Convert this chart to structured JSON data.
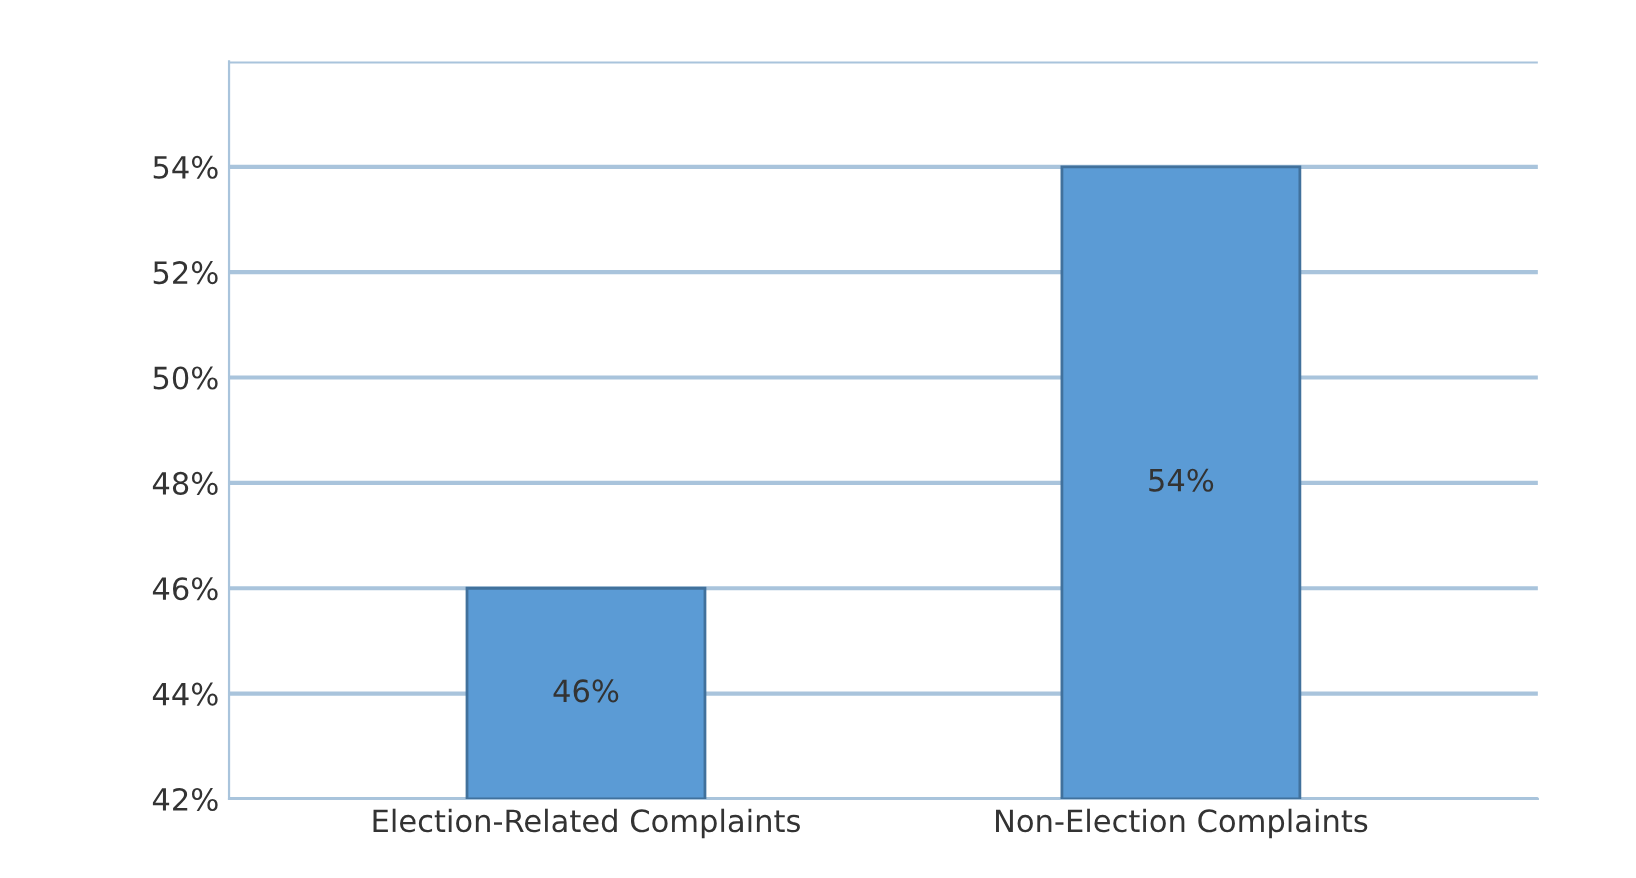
{
  "chart_data": {
    "type": "bar",
    "categories": [
      "Election-Related Complaints",
      "Non-Election Complaints"
    ],
    "values": [
      46,
      54
    ],
    "color": "#5b9bd5",
    "value_labels": [
      "46%",
      "54%"
    ],
    "ylim": [
      42,
      56
    ],
    "yticks": [
      {
        "value": 42,
        "label": "42%"
      },
      {
        "value": 44,
        "label": "44%"
      },
      {
        "value": 46,
        "label": "46%"
      },
      {
        "value": 48,
        "label": "48%"
      },
      {
        "value": 50,
        "label": "50%"
      },
      {
        "value": 52,
        "label": "52%"
      },
      {
        "value": 54,
        "label": "54%"
      },
      {
        "value": 56,
        "label": null
      }
    ],
    "grid": "y"
  }
}
